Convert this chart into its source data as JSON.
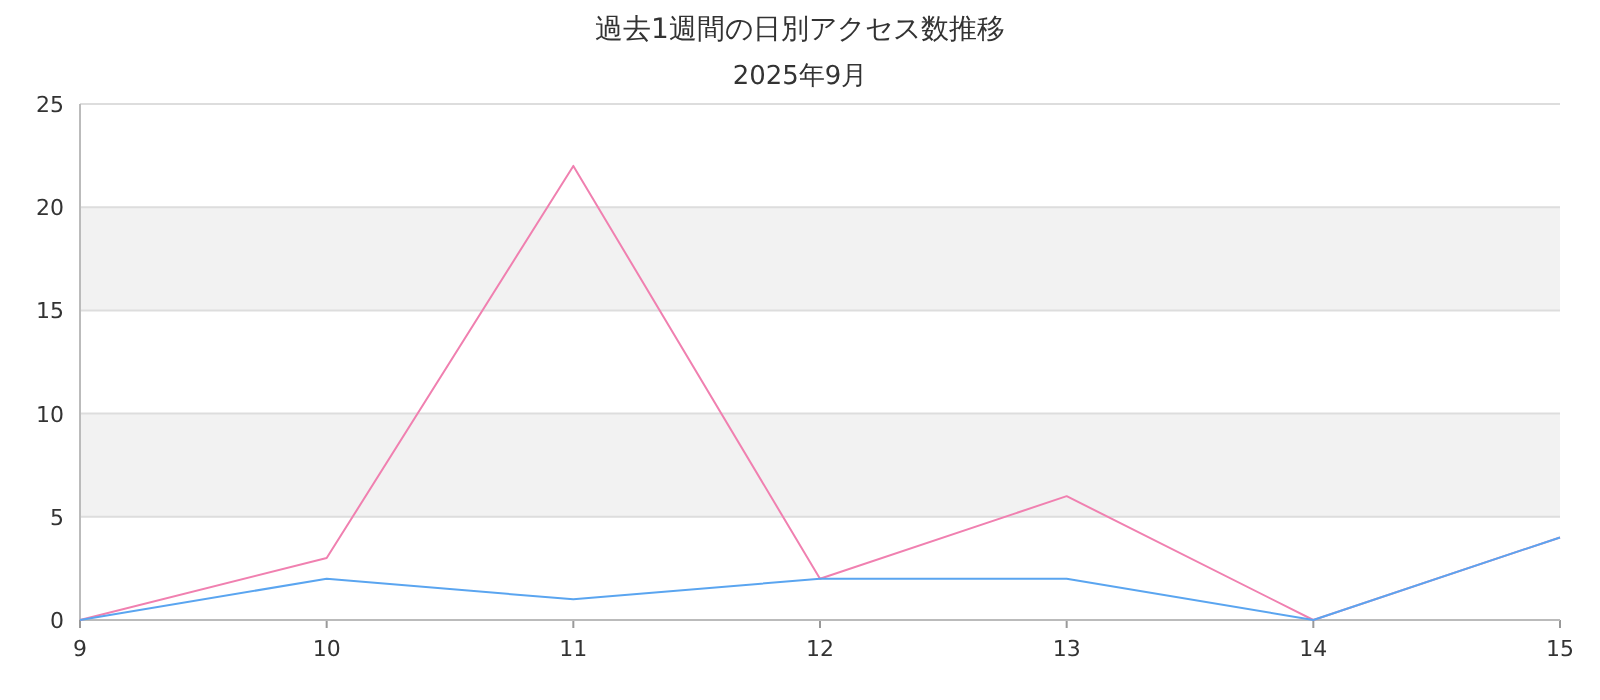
{
  "chart_data": {
    "type": "line",
    "title": "過去1週間の日別アクセス数推移",
    "subtitle": "2025年9月",
    "x": [
      9,
      10,
      11,
      12,
      13,
      14,
      15
    ],
    "xlim": [
      9,
      15
    ],
    "xticks": [
      9,
      10,
      11,
      12,
      13,
      14,
      15
    ],
    "ylim": [
      0,
      25
    ],
    "yticks": [
      0,
      5,
      10,
      15,
      20,
      25
    ],
    "grid": "y",
    "bands": [
      {
        "axis": "y",
        "from": 5,
        "to": 10,
        "color": "#f2f2f2"
      },
      {
        "axis": "y",
        "from": 15,
        "to": 20,
        "color": "#f2f2f2"
      }
    ],
    "series": [
      {
        "color": "#f080b0",
        "values": [
          0,
          3,
          22,
          2,
          6,
          0,
          4
        ]
      },
      {
        "color": "#5aa5f0",
        "values": [
          0,
          2,
          1,
          2,
          2,
          0,
          4
        ]
      }
    ]
  }
}
